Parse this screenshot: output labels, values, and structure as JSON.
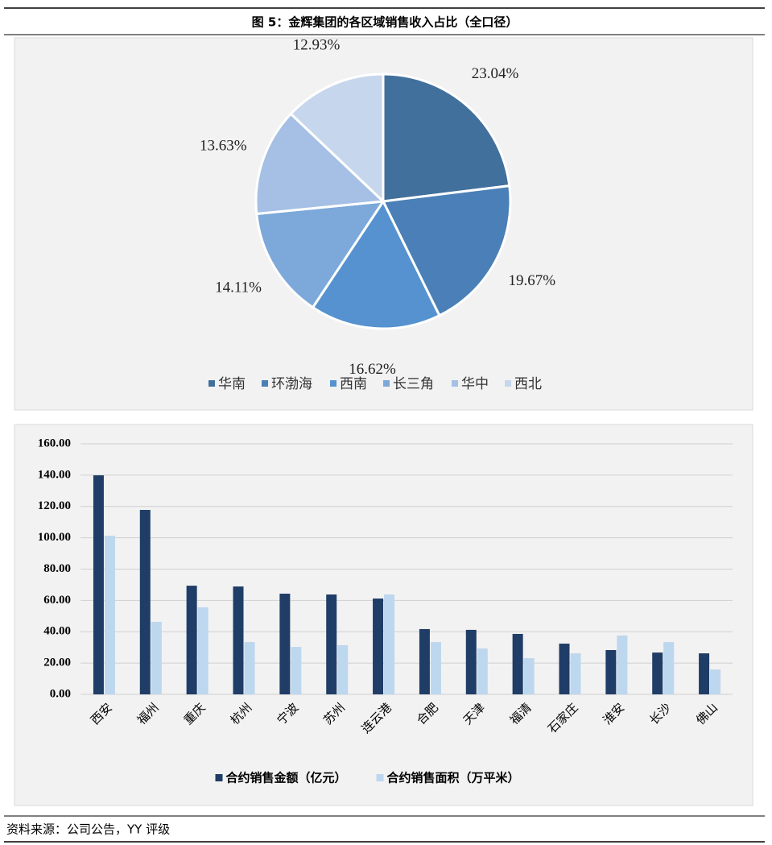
{
  "header": {
    "title": "图 5：金辉集团的各区域销售收入占比（全口径）"
  },
  "chart_data": [
    {
      "type": "pie",
      "categories": [
        "华南",
        "环渤海",
        "西南",
        "长三角",
        "华中",
        "西北"
      ],
      "values": [
        23.04,
        19.67,
        16.62,
        14.11,
        13.63,
        12.93
      ],
      "value_labels": [
        "23.04%",
        "19.67%",
        "16.62%",
        "14.11%",
        "13.63%",
        "12.93%"
      ],
      "colors": [
        "#41709c",
        "#4a80b7",
        "#5592cf",
        "#7ca8da",
        "#a5c0e4",
        "#c6d6ed"
      ],
      "legend": "bottom"
    },
    {
      "type": "bar",
      "categories": [
        "西安",
        "福州",
        "重庆",
        "杭州",
        "宁波",
        "苏州",
        "连云港",
        "合肥",
        "天津",
        "福清",
        "石家庄",
        "淮安",
        "长沙",
        "佛山"
      ],
      "series": [
        {
          "name": "合约销售金额（亿元）",
          "color": "#1f3d66",
          "values": [
            139.9,
            117.8,
            69.4,
            68.9,
            64.3,
            63.8,
            61.2,
            41.7,
            41.2,
            38.6,
            32.4,
            28.3,
            26.7,
            26.2
          ]
        },
        {
          "name": "合约销售面积（万平米）",
          "color": "#bdd7ee",
          "values": [
            101.3,
            46.3,
            55.6,
            33.4,
            30.3,
            31.4,
            63.8,
            33.4,
            29.3,
            23.1,
            26.2,
            37.6,
            33.4,
            15.9
          ]
        }
      ],
      "ylim": [
        0,
        160
      ],
      "yticks": [
        {
          "value": 0,
          "label": "0.00"
        },
        {
          "value": 20,
          "label": "20.00"
        },
        {
          "value": 40,
          "label": "40.00"
        },
        {
          "value": 60,
          "label": "60.00"
        },
        {
          "value": 80,
          "label": "80.00"
        },
        {
          "value": 100,
          "label": "100.00"
        },
        {
          "value": 120,
          "label": "120.00"
        },
        {
          "value": 140,
          "label": "140.00"
        },
        {
          "value": 160,
          "label": "160.00"
        }
      ],
      "grid": true,
      "legend": "bottom"
    }
  ],
  "footer": {
    "source": "资料来源：公司公告，YY 评级"
  }
}
